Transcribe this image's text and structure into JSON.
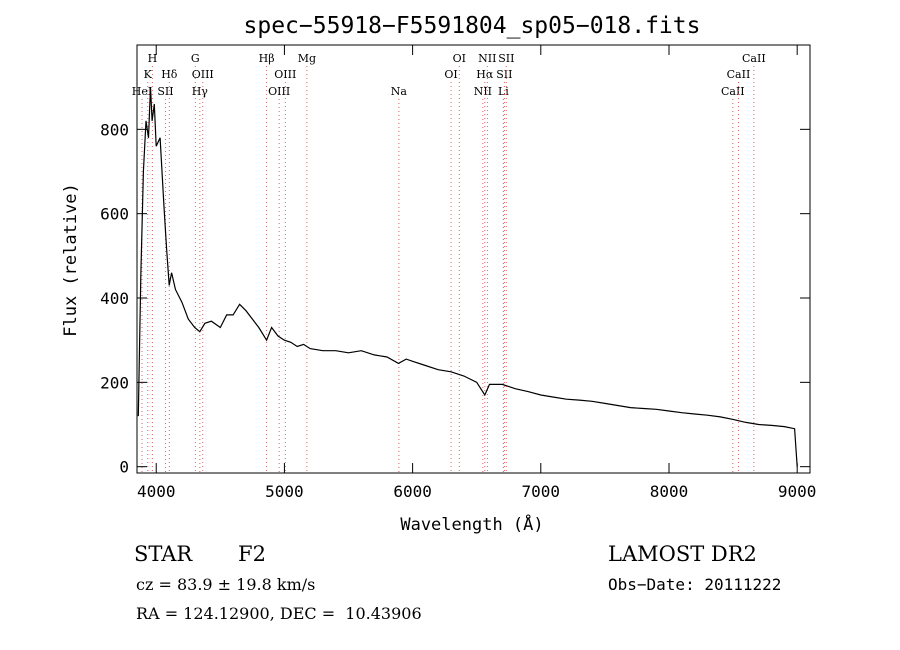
{
  "chart_data": {
    "type": "line",
    "title": "spec−55918−F5591804_sp05−018.fits",
    "xlabel": "Wavelength (Å)",
    "ylabel": "Flux (relative)",
    "xlim": [
      3850,
      9100
    ],
    "ylim": [
      -15,
      1000
    ],
    "xticks": [
      4000,
      5000,
      6000,
      7000,
      8000,
      9000
    ],
    "yticks": [
      0,
      200,
      400,
      600,
      800
    ],
    "grid": false,
    "line_color": "#000000",
    "marker_color": "#e06060",
    "series": [
      {
        "x": [
          3860,
          3880,
          3900,
          3920,
          3940,
          3955,
          3968,
          3985,
          4000,
          4030,
          4060,
          4080,
          4101,
          4120,
          4150,
          4200,
          4250,
          4300,
          4340,
          4380,
          4430,
          4500,
          4550,
          4600,
          4650,
          4700,
          4750,
          4800,
          4861,
          4900,
          4950,
          5000,
          5050,
          5100,
          5150,
          5200,
          5300,
          5400,
          5500,
          5600,
          5700,
          5800,
          5890,
          5950,
          6000,
          6100,
          6200,
          6300,
          6400,
          6500,
          6563,
          6600,
          6700,
          6800,
          6900,
          7000,
          7100,
          7200,
          7300,
          7400,
          7500,
          7600,
          7700,
          7800,
          7900,
          8000,
          8100,
          8200,
          8300,
          8400,
          8500,
          8600,
          8700,
          8800,
          8900,
          8980,
          9000
        ],
        "y": [
          120,
          450,
          700,
          820,
          780,
          900,
          820,
          860,
          760,
          780,
          620,
          520,
          430,
          460,
          420,
          390,
          350,
          330,
          320,
          340,
          345,
          330,
          360,
          360,
          385,
          370,
          350,
          330,
          300,
          330,
          310,
          300,
          295,
          285,
          290,
          280,
          275,
          275,
          270,
          275,
          265,
          260,
          245,
          255,
          250,
          240,
          230,
          225,
          215,
          200,
          170,
          195,
          195,
          185,
          178,
          170,
          165,
          160,
          158,
          155,
          150,
          145,
          140,
          138,
          136,
          132,
          128,
          125,
          122,
          118,
          112,
          105,
          100,
          98,
          95,
          90,
          0
        ]
      }
    ],
    "line_markers": [
      {
        "x": 3889,
        "label": "HeI",
        "row": 3
      },
      {
        "x": 3934,
        "label": "K",
        "row": 2
      },
      {
        "x": 3970,
        "label": "H",
        "row": 1
      },
      {
        "x": 4072,
        "label": "SII",
        "row": 3
      },
      {
        "x": 4102,
        "label": "Hδ",
        "row": 2
      },
      {
        "x": 4305,
        "label": "G",
        "row": 1
      },
      {
        "x": 4340,
        "label": "Hγ",
        "row": 3
      },
      {
        "x": 4363,
        "label": "OIII",
        "row": 2
      },
      {
        "x": 4861,
        "label": "Hβ",
        "row": 1
      },
      {
        "x": 4959,
        "label": "OIII",
        "row": 3
      },
      {
        "x": 5007,
        "label": "OIII",
        "row": 2
      },
      {
        "x": 5175,
        "label": "Mg",
        "row": 1
      },
      {
        "x": 5893,
        "label": "Na",
        "row": 3
      },
      {
        "x": 6300,
        "label": "OI",
        "row": 2
      },
      {
        "x": 6364,
        "label": "OI",
        "row": 1
      },
      {
        "x": 6548,
        "label": "NII",
        "row": 3
      },
      {
        "x": 6563,
        "label": "Hα",
        "row": 2
      },
      {
        "x": 6583,
        "label": "NII",
        "row": 1
      },
      {
        "x": 6708,
        "label": "Li",
        "row": 3
      },
      {
        "x": 6716,
        "label": "SII",
        "row": 2
      },
      {
        "x": 6731,
        "label": "SII",
        "row": 1
      },
      {
        "x": 8498,
        "label": "CaII",
        "row": 3
      },
      {
        "x": 8542,
        "label": "CaII",
        "row": 2
      },
      {
        "x": 8662,
        "label": "CaII",
        "row": 1
      }
    ]
  },
  "info": {
    "object_class": "STAR",
    "subclass": "F2",
    "redshift": "cz = 83.9 ± 19.8 km/s",
    "coords": "RA = 124.12900, DEC =  10.43906",
    "survey": "LAMOST DR2",
    "obs_date": "Obs−Date: 20111222"
  }
}
